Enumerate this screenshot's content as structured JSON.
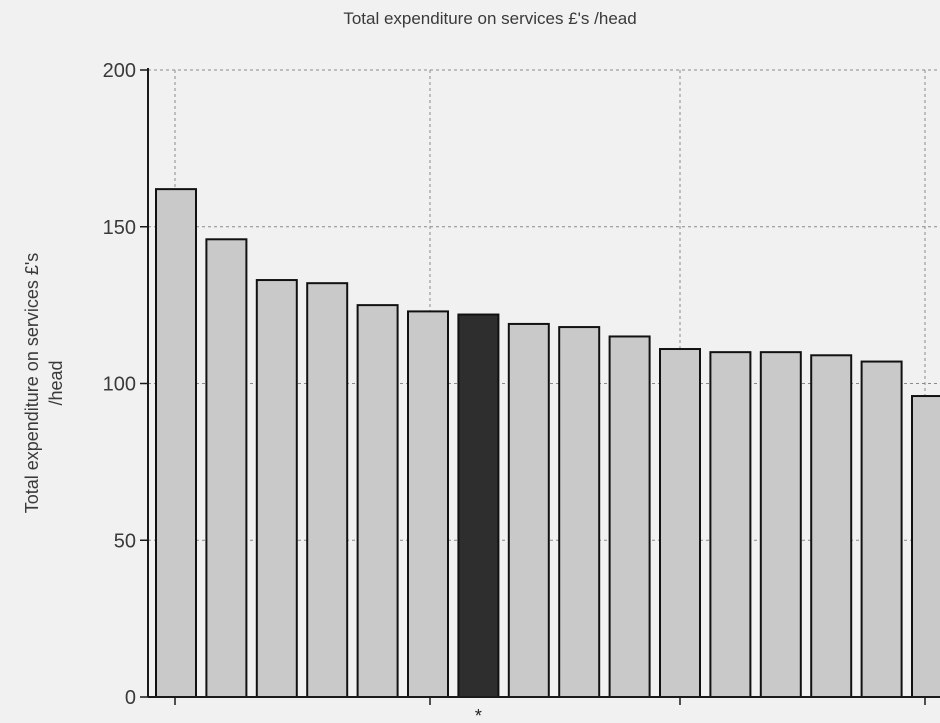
{
  "chart_data": {
    "type": "bar",
    "title": "Total expenditure on services  £'s /head",
    "ylabel_lines": [
      "Total expenditure on services  £'s",
      "/head"
    ],
    "xlabel": "",
    "ylim": [
      0,
      200
    ],
    "yticks": [
      0,
      50,
      100,
      150,
      200
    ],
    "grid": true,
    "values": [
      162,
      146,
      133,
      132,
      125,
      123,
      122,
      119,
      118,
      115,
      111,
      110,
      110,
      109,
      107,
      96
    ],
    "highlight_index": 6,
    "highlight_marker": "*",
    "colors": {
      "bar": "#c9c9c9",
      "highlight": "#2e2e2e",
      "bar_stroke": "#111111",
      "grid": "#8a8a8a",
      "background": "#f1f1f1"
    }
  }
}
